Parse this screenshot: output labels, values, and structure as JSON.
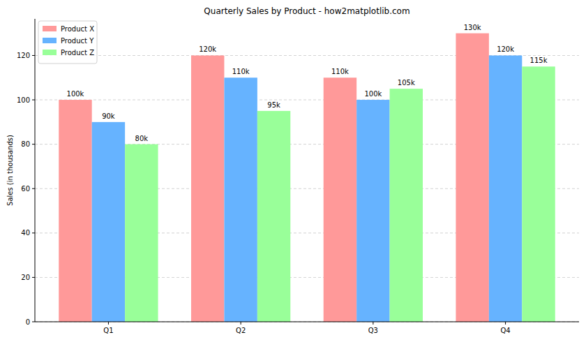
{
  "chart_data": {
    "type": "bar",
    "title": "Quarterly Sales by Product - how2matplotlib.com",
    "y_label": "Sales (in thousands)",
    "categories": [
      "Q1",
      "Q2",
      "Q3",
      "Q4"
    ],
    "series": [
      {
        "name": "Product X",
        "color": "#ff9999",
        "values": [
          100,
          120,
          110,
          130
        ],
        "value_labels": [
          "100k",
          "120k",
          "110k",
          "130k"
        ]
      },
      {
        "name": "Product Y",
        "color": "#66b3ff",
        "values": [
          90,
          110,
          100,
          120
        ],
        "value_labels": [
          "90k",
          "110k",
          "100k",
          "120k"
        ]
      },
      {
        "name": "Product Z",
        "color": "#99ff99",
        "values": [
          80,
          95,
          105,
          115
        ],
        "value_labels": [
          "80k",
          "95k",
          "105k",
          "115k"
        ]
      }
    ],
    "ylim": [
      0,
      136.5
    ],
    "yticks": [
      0,
      20,
      40,
      60,
      80,
      100,
      120
    ],
    "grid": true,
    "legend": "upper-left",
    "data_labels": true
  }
}
